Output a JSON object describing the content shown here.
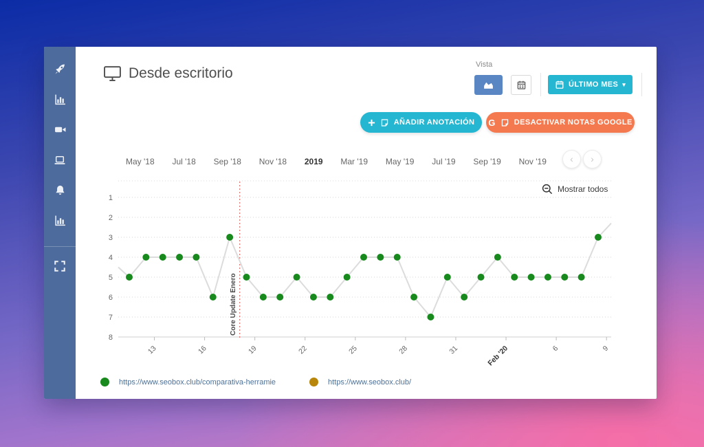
{
  "header": {
    "title": "Desde escritorio",
    "icon": "monitor"
  },
  "sidebar": {
    "icons": [
      "rocket",
      "bar-chart",
      "video-camera",
      "laptop",
      "bell",
      "bar-chart",
      "expand"
    ]
  },
  "view_controls": {
    "label": "Vista",
    "buttons": [
      {
        "name": "chart-view",
        "icon": "area-chart",
        "active": true
      },
      {
        "name": "calendar-view",
        "icon": "calendar",
        "active": false
      }
    ],
    "period_button": {
      "icon": "calendar",
      "label": "ÚLTIMO MES",
      "caret": "▾"
    }
  },
  "actions": {
    "add_annotation": "AÑADIR ANOTACIÓN",
    "disable_google_notes": "DESACTIVAR NOTAS GOOGLE"
  },
  "timeline": {
    "months": [
      "May '18",
      "Jul '18",
      "Sep '18",
      "Nov '18",
      "2019",
      "Mar '19",
      "May '19",
      "Jul '19",
      "Sep '19",
      "Nov '19"
    ],
    "bold_month": "2019",
    "nav_prev": "‹",
    "nav_next": "›"
  },
  "chart_controls": {
    "show_all": "Mostrar todos"
  },
  "chart_data": {
    "type": "line",
    "title": "Desde escritorio",
    "y_axis": {
      "ticks": [
        1,
        2,
        3,
        4,
        5,
        6,
        7,
        8
      ],
      "inverted": true,
      "range": [
        1,
        8
      ]
    },
    "x_axis": {
      "tick_labels": [
        "13",
        "16",
        "19",
        "22",
        "25",
        "28",
        "31",
        "Feb '20",
        "6",
        "9"
      ],
      "tick_positions": [
        1.5,
        4.5,
        7.5,
        10.5,
        13.5,
        16.5,
        19.5,
        22.5,
        25.5,
        28.5
      ],
      "bold_label": "Feb '20"
    },
    "series": [
      {
        "name": "https://www.seobox.club/comparativa-herramien",
        "color": "#17891d",
        "values": [
          5,
          4,
          4,
          4,
          4,
          6,
          3,
          5,
          6,
          6,
          5,
          6,
          6,
          5,
          4,
          4,
          4,
          6,
          7,
          5,
          6,
          5,
          4,
          5,
          5,
          5,
          5,
          5,
          3
        ],
        "edge_in": 4.5,
        "edge_out": 2.3
      },
      {
        "name": "https://www.seobox.club/",
        "color": "#b8860b",
        "values": []
      }
    ],
    "annotation": {
      "label": "Core Update Enero",
      "x_position": 6.6,
      "color": "#d9534f"
    },
    "legend": [
      {
        "label": "https://www.seobox.club/comparativa-herramien",
        "color": "#17891d"
      },
      {
        "label": "https://www.seobox.club/",
        "color": "#b8860b"
      }
    ]
  },
  "colors": {
    "sidebar": "#4d6b9c",
    "accent_teal": "#25b6d2",
    "accent_orange": "#f4794f",
    "view_active_blue": "#5a87c4",
    "series_green": "#17891d",
    "series_gold": "#b8860b",
    "annotation_red": "#d9534f"
  }
}
